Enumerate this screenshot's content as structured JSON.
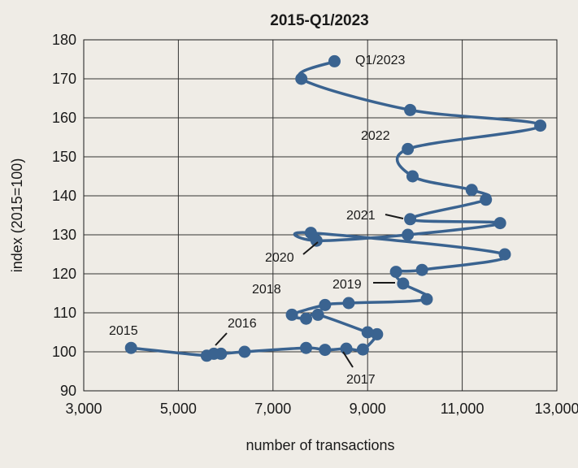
{
  "chart_data": {
    "type": "line",
    "title": "2015-Q1/2023",
    "xlabel": "number of transactions",
    "ylabel": "index (2015=100)",
    "xlim": [
      3000,
      13000
    ],
    "ylim": [
      90,
      180
    ],
    "xticks": [
      3000,
      5000,
      7000,
      9000,
      11000,
      13000
    ],
    "xtick_labels": [
      "3,000",
      "5,000",
      "7,000",
      "9,000",
      "11,000",
      "13,000"
    ],
    "yticks": [
      90,
      100,
      110,
      120,
      130,
      140,
      150,
      160,
      170,
      180
    ],
    "ytick_labels": [
      "90",
      "100",
      "110",
      "120",
      "130",
      "140",
      "150",
      "160",
      "170",
      "180"
    ],
    "grid": {
      "x": true,
      "y": true
    },
    "series_color": "#3a6390",
    "series": [
      {
        "x": [
          4000,
          5600,
          5750,
          5900,
          6400,
          7700,
          8100,
          8550,
          8900,
          9200,
          9000,
          7950,
          7700,
          7400,
          8100,
          8600,
          10250,
          9750,
          9600,
          10150,
          11900,
          7800,
          7920,
          9850,
          11800,
          9900,
          11500,
          11200,
          9950,
          9850,
          12650,
          9900,
          7600,
          8300
        ],
        "y": [
          101,
          99,
          99.5,
          99.5,
          100,
          101,
          100.5,
          100.8,
          100.6,
          104.5,
          105,
          109.5,
          108.5,
          109.5,
          112,
          112.5,
          113.5,
          117.5,
          120.5,
          121,
          125,
          130.5,
          128.5,
          130,
          133,
          134,
          139,
          141.5,
          145,
          152,
          158,
          162,
          170,
          174.5
        ]
      }
    ],
    "annotations": [
      {
        "text": "2015",
        "series_x": 4000,
        "series_y": 101
      },
      {
        "text": "2016",
        "series_x": 5600,
        "series_y": 101
      },
      {
        "text": "2017",
        "series_x": 8400,
        "series_y": 101
      },
      {
        "text": "2018",
        "series_x": 7400,
        "series_y": 109.5
      },
      {
        "text": "2019",
        "series_x": 9600,
        "series_y": 117.5
      },
      {
        "text": "2020",
        "series_x": 7800,
        "series_y": 128.5
      },
      {
        "text": "2021",
        "series_x": 9900,
        "series_y": 134
      },
      {
        "text": "2022",
        "series_x": 9850,
        "series_y": 152
      },
      {
        "text": "Q1/2023",
        "series_x": 8300,
        "series_y": 174.5
      }
    ]
  }
}
